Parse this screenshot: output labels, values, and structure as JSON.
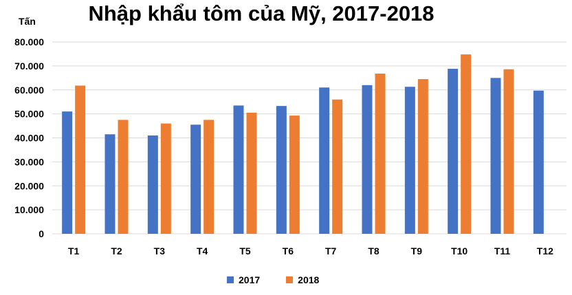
{
  "chart_data": {
    "type": "bar",
    "title": "Nhập khẩu tôm của Mỹ, 2017-2018",
    "ylabel": "Tấn",
    "xlabel": "",
    "categories": [
      "T1",
      "T2",
      "T3",
      "T4",
      "T5",
      "T6",
      "T7",
      "T8",
      "T9",
      "T10",
      "T11",
      "T12"
    ],
    "series": [
      {
        "name": "2017",
        "color": "#4472C4",
        "values": [
          51000,
          41500,
          41000,
          45500,
          53500,
          53300,
          61000,
          62000,
          61300,
          68800,
          65000,
          59700
        ]
      },
      {
        "name": "2018",
        "color": "#ED7D31",
        "values": [
          61800,
          47500,
          46000,
          47500,
          50500,
          49300,
          56000,
          66800,
          64500,
          74800,
          68600,
          null
        ]
      }
    ],
    "ylim": [
      0,
      80000
    ],
    "yticks": [
      0,
      10000,
      20000,
      30000,
      40000,
      50000,
      60000,
      70000,
      80000
    ],
    "ytick_labels": [
      "0",
      "10.000",
      "20.000",
      "30.000",
      "40.000",
      "50.000",
      "60.000",
      "70.000",
      "80.000"
    ],
    "grid": true,
    "legend_position": "bottom"
  }
}
